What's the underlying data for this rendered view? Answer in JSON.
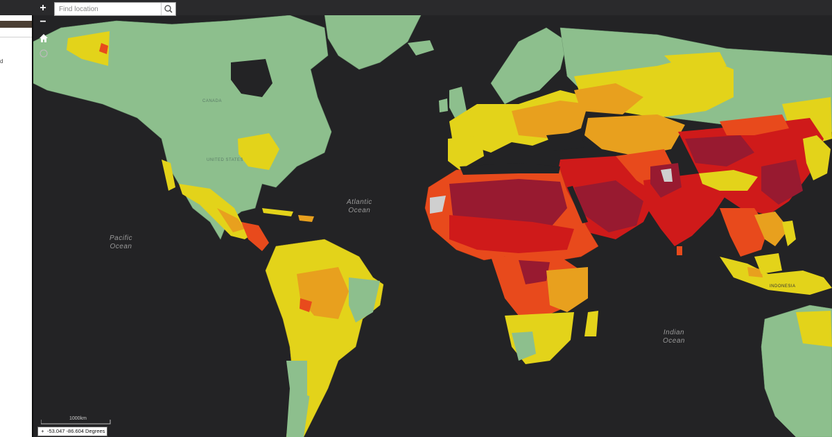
{
  "toolbar": {
    "zoom_in_label": "+",
    "zoom_out_label": "−",
    "search_placeholder": "Find location"
  },
  "oceans": {
    "atlantic": [
      "Atlantic",
      "Ocean"
    ],
    "pacific": [
      "Pacific",
      "Ocean"
    ],
    "indian": [
      "Indian",
      "Ocean"
    ]
  },
  "map_labels": {
    "canada": "CANADA",
    "united_states": "UNITED STATES",
    "indonesia": "INDONESIA"
  },
  "scale": {
    "label": "1000km"
  },
  "coordinates": {
    "text": "-53.047 -86.604 Degrees"
  },
  "side_panel": {
    "fragment": "d"
  },
  "colors": {
    "ocean": "#232325",
    "low": "#8dbf8d",
    "moderate": "#e3d31a",
    "elevated": "#e8a01e",
    "high": "#e84a1c",
    "very_high": "#cf1a1a",
    "extreme": "#981a30",
    "no_data": "#cfcfcf"
  }
}
